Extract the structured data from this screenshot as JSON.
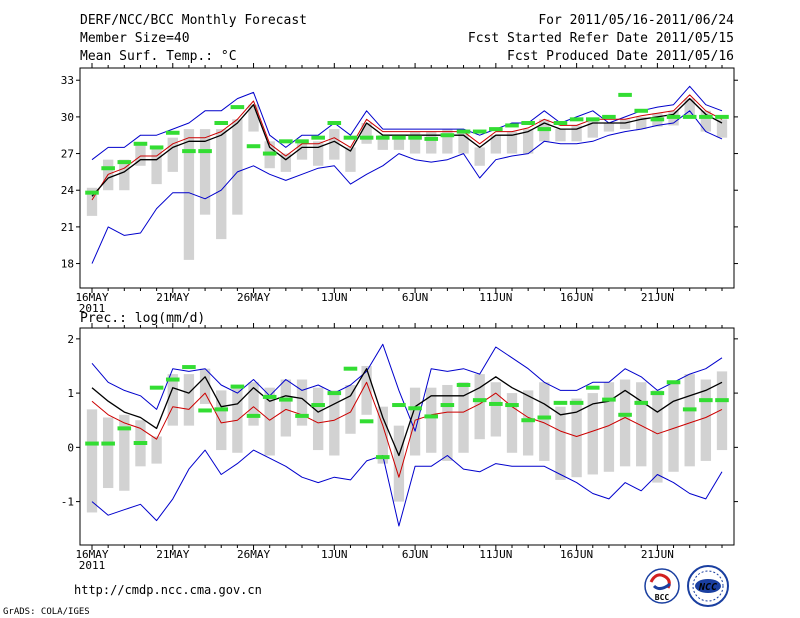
{
  "header": {
    "title": "DERF/NCC/BCC Monthly Forecast",
    "member_size": "Member Size=40",
    "variable": "Mean Surf. Temp.: °C",
    "period": "For 2011/05/16-2011/06/24",
    "started": "Fcst Started Refer Date 2011/05/15",
    "produced": "Fcst Produced Date 2011/05/16"
  },
  "x_axis": {
    "tick_labels": [
      "16MAY",
      "21MAY",
      "26MAY",
      "1JUN",
      "6JUN",
      "11JUN",
      "16JUN",
      "21JUN"
    ],
    "year_label": "2011"
  },
  "footer": {
    "url": "http://cmdp.ncc.cma.gov.cn",
    "credit": "GrADS: COLA/IGES",
    "logo_left_text": "BCC",
    "logo_right_text": "NCC"
  },
  "colors": {
    "envelope": "#0000cc",
    "mean": "#000000",
    "median": "#cc0000",
    "box": "#d2d2d2",
    "marker": "#33dd33"
  },
  "chart_data": [
    {
      "type": "line",
      "title": "Mean Surf. Temp.: °C",
      "xlabel": "",
      "ylabel": "",
      "x_range": [
        0,
        39
      ],
      "ylim": [
        16,
        34
      ],
      "yticks": [
        18,
        21,
        24,
        27,
        30,
        33
      ],
      "series": [
        {
          "name": "max",
          "values": [
            26.5,
            27.5,
            27.5,
            28.5,
            28.5,
            29.0,
            29.5,
            30.5,
            30.5,
            31.5,
            32.0,
            28.5,
            27.5,
            28.5,
            28.5,
            29.5,
            28.5,
            30.5,
            29.0,
            29.0,
            29.0,
            29.0,
            29.0,
            29.0,
            28.5,
            29.0,
            29.5,
            29.5,
            30.5,
            29.5,
            30.0,
            30.5,
            29.5,
            30.0,
            30.5,
            30.8,
            31.0,
            32.5,
            31.0,
            30.5,
            31.0
          ]
        },
        {
          "name": "mean",
          "values": [
            23.5,
            25.0,
            25.5,
            26.5,
            26.5,
            27.5,
            28.0,
            28.0,
            28.5,
            29.5,
            31.0,
            27.5,
            26.5,
            27.5,
            27.5,
            28.0,
            27.2,
            29.5,
            28.5,
            28.5,
            28.5,
            28.5,
            28.5,
            28.5,
            27.5,
            28.5,
            28.5,
            28.8,
            29.5,
            29.0,
            29.0,
            29.5,
            29.5,
            29.5,
            29.8,
            30.0,
            30.2,
            31.5,
            30.2,
            29.5,
            30.0
          ]
        },
        {
          "name": "median",
          "values": [
            23.2,
            25.3,
            25.8,
            26.8,
            26.8,
            27.8,
            28.3,
            28.3,
            28.8,
            29.8,
            31.3,
            27.8,
            26.8,
            27.8,
            27.8,
            28.3,
            27.5,
            29.8,
            28.8,
            28.8,
            28.8,
            28.8,
            28.8,
            28.8,
            27.8,
            28.8,
            28.8,
            29.1,
            29.8,
            29.3,
            29.3,
            29.8,
            29.8,
            29.8,
            30.1,
            30.3,
            30.5,
            31.8,
            30.5,
            29.8,
            30.2
          ]
        },
        {
          "name": "min",
          "values": [
            18.0,
            21.0,
            20.3,
            20.5,
            22.5,
            23.8,
            23.8,
            23.3,
            24.0,
            25.5,
            26.0,
            25.3,
            24.8,
            25.3,
            25.8,
            26.0,
            24.5,
            25.3,
            26.0,
            27.0,
            26.5,
            26.3,
            26.5,
            27.0,
            25.0,
            26.5,
            26.8,
            27.0,
            28.0,
            27.8,
            27.8,
            28.0,
            28.5,
            28.8,
            29.0,
            29.3,
            29.5,
            30.5,
            28.8,
            28.2,
            28.5
          ]
        },
        {
          "name": "box_high",
          "values": [
            24.2,
            26.5,
            26.5,
            27.8,
            27.5,
            28.3,
            29.0,
            29.0,
            29.0,
            29.8,
            31.0,
            28.0,
            27.0,
            28.0,
            28.0,
            29.0,
            27.5,
            29.5,
            28.5,
            28.5,
            28.8,
            28.8,
            29.0,
            28.8,
            27.5,
            28.5,
            28.8,
            29.0,
            29.8,
            29.0,
            29.3,
            29.8,
            29.5,
            29.8,
            30.0,
            30.3,
            30.5,
            31.5,
            30.5,
            29.8,
            30.3
          ]
        },
        {
          "name": "box_low",
          "values": [
            21.9,
            24.0,
            24.0,
            26.0,
            24.5,
            25.5,
            18.3,
            22.0,
            20.0,
            22.0,
            28.8,
            25.8,
            25.5,
            26.5,
            26.0,
            26.5,
            25.5,
            27.8,
            27.3,
            27.3,
            27.0,
            27.0,
            27.0,
            27.0,
            26.0,
            27.0,
            27.0,
            27.0,
            28.0,
            28.0,
            28.0,
            28.3,
            28.8,
            29.0,
            29.0,
            29.2,
            29.3,
            30.0,
            28.8,
            28.3,
            28.5
          ]
        },
        {
          "name": "observed",
          "values": [
            23.8,
            25.8,
            26.3,
            27.8,
            27.5,
            28.7,
            27.2,
            27.2,
            29.5,
            30.8,
            27.6,
            27.0,
            28.0,
            28.0,
            28.3,
            29.5,
            28.3,
            28.3,
            28.3,
            28.3,
            28.3,
            28.2,
            28.5,
            28.8,
            28.8,
            29.0,
            29.3,
            29.5,
            29.0,
            29.5,
            29.8,
            29.8,
            30.0,
            31.8,
            30.5,
            29.8,
            30.0,
            30.0,
            30.0,
            30.0,
            30.0
          ]
        }
      ]
    },
    {
      "type": "line",
      "title": "Prec.: log(mm/d)",
      "xlabel": "",
      "ylabel": "",
      "x_range": [
        0,
        39
      ],
      "ylim": [
        -1.8,
        2.2
      ],
      "yticks": [
        -1,
        0,
        1,
        2
      ],
      "series": [
        {
          "name": "max",
          "values": [
            1.55,
            1.2,
            1.05,
            0.95,
            0.7,
            1.45,
            1.4,
            1.45,
            1.15,
            1.0,
            1.25,
            0.95,
            1.25,
            1.05,
            1.15,
            1.0,
            1.15,
            1.4,
            1.9,
            1.05,
            0.3,
            1.45,
            1.4,
            1.45,
            1.35,
            1.85,
            1.65,
            1.45,
            1.2,
            1.05,
            1.05,
            1.2,
            1.2,
            1.45,
            1.3,
            1.05,
            1.2,
            1.35,
            1.45,
            1.65,
            1.3,
            1.2
          ]
        },
        {
          "name": "mean",
          "values": [
            1.1,
            0.85,
            0.65,
            0.55,
            0.35,
            1.1,
            1.0,
            1.3,
            0.75,
            0.8,
            1.1,
            0.85,
            0.95,
            0.9,
            0.65,
            0.8,
            0.95,
            1.45,
            0.55,
            -0.15,
            0.75,
            0.95,
            0.95,
            0.95,
            1.1,
            1.3,
            1.1,
            0.95,
            0.8,
            0.6,
            0.65,
            0.8,
            0.85,
            1.05,
            0.85,
            0.65,
            0.85,
            0.95,
            1.05,
            1.2,
            0.85,
            0.75
          ]
        },
        {
          "name": "median",
          "values": [
            0.85,
            0.6,
            0.45,
            0.35,
            0.15,
            0.75,
            0.7,
            1.0,
            0.45,
            0.5,
            0.75,
            0.5,
            0.7,
            0.6,
            0.45,
            0.5,
            0.65,
            1.2,
            0.4,
            -0.55,
            0.5,
            0.6,
            0.65,
            0.65,
            0.8,
            1.0,
            0.75,
            0.55,
            0.45,
            0.3,
            0.2,
            0.3,
            0.4,
            0.55,
            0.4,
            0.25,
            0.35,
            0.45,
            0.55,
            0.7,
            0.3,
            0.1
          ]
        },
        {
          "name": "min",
          "values": [
            -1.0,
            -1.25,
            -1.15,
            -1.05,
            -1.35,
            -0.95,
            -0.4,
            -0.05,
            -0.5,
            -0.3,
            -0.05,
            -0.2,
            -0.35,
            -0.55,
            -0.65,
            -0.55,
            -0.6,
            -0.25,
            -0.15,
            -1.45,
            -0.35,
            -0.35,
            -0.15,
            -0.4,
            -0.45,
            -0.3,
            -0.35,
            -0.35,
            -0.35,
            -0.5,
            -0.65,
            -0.85,
            -0.95,
            -0.65,
            -0.8,
            -0.5,
            -0.65,
            -0.85,
            -0.95,
            -0.45,
            -0.6,
            -0.95
          ]
        },
        {
          "name": "box_high",
          "values": [
            0.7,
            0.55,
            0.6,
            0.5,
            0.2,
            1.35,
            1.35,
            1.45,
            1.05,
            1.15,
            1.2,
            1.1,
            1.25,
            1.25,
            1.1,
            1.05,
            1.15,
            1.5,
            0.75,
            0.4,
            1.1,
            1.1,
            1.15,
            1.2,
            1.35,
            1.2,
            1.0,
            1.05,
            1.2,
            0.75,
            0.9,
            1.0,
            1.2,
            1.25,
            1.2,
            1.05,
            1.2,
            1.35,
            1.25,
            1.4,
            1.35,
            1.4
          ]
        },
        {
          "name": "box_low",
          "values": [
            -1.2,
            -0.75,
            -0.8,
            -0.35,
            -0.3,
            0.4,
            0.4,
            0.8,
            -0.05,
            -0.1,
            0.4,
            -0.15,
            0.2,
            0.4,
            -0.05,
            -0.15,
            0.25,
            0.6,
            -0.3,
            -1.0,
            -0.15,
            -0.1,
            -0.25,
            -0.1,
            0.15,
            0.2,
            -0.1,
            -0.15,
            -0.25,
            -0.6,
            -0.55,
            -0.5,
            -0.45,
            -0.35,
            -0.35,
            -0.65,
            -0.45,
            -0.35,
            -0.25,
            -0.05,
            -0.5,
            -0.05
          ]
        },
        {
          "name": "observed",
          "values": [
            0.07,
            0.07,
            0.35,
            0.08,
            1.1,
            1.25,
            1.48,
            0.68,
            0.7,
            1.12,
            0.58,
            0.93,
            0.88,
            0.58,
            0.78,
            1.0,
            1.45,
            0.48,
            -0.18,
            0.78,
            0.72,
            0.57,
            0.78,
            1.15,
            0.87,
            0.8,
            0.78,
            0.5,
            0.55,
            0.82,
            0.82,
            1.1,
            0.88,
            0.6,
            0.82,
            1.0,
            1.2,
            0.7,
            0.87,
            0.87
          ]
        }
      ]
    }
  ]
}
